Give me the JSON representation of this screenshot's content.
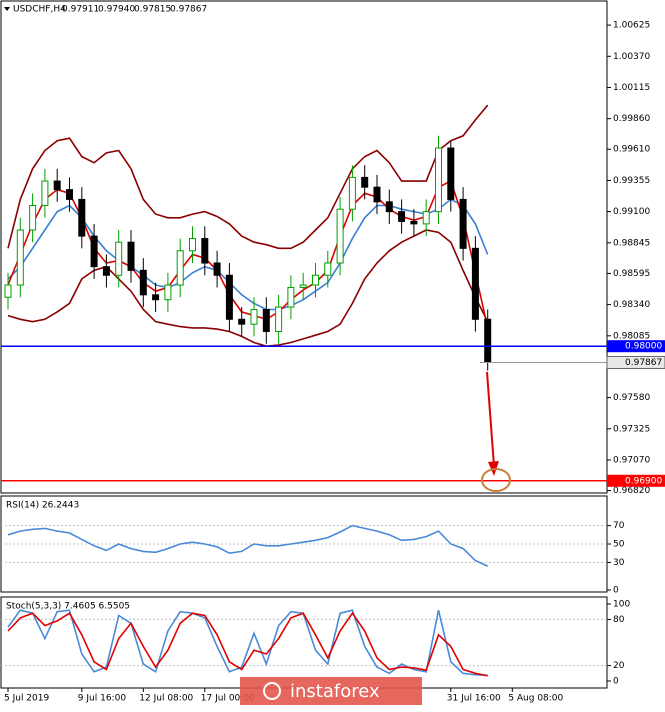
{
  "header": {
    "symbol": "USDCHF,H4",
    "ohlc": [
      "0.97911",
      "0.97940",
      "0.97815",
      "0.97867"
    ]
  },
  "watermark": "instaforex",
  "chart_data": [
    {
      "type": "candlestick",
      "ylim": [
        0.968,
        1.0083
      ],
      "yticks": [
        1.00625,
        {
          "value": 1.0037,
          "label": "1.00370"
        },
        1.00115,
        {
          "value": 0.9986,
          "label": "0.99860"
        },
        {
          "value": 0.9961,
          "label": "0.99610"
        },
        0.99355,
        {
          "value": 0.991,
          "label": "0.99100"
        },
        0.98845,
        0.98595,
        {
          "value": 0.9834,
          "label": "0.98340"
        },
        0.98085,
        {
          "value": 0.9758,
          "label": "0.97580"
        },
        0.97325,
        {
          "value": 0.9707,
          "label": "0.97070"
        },
        {
          "value": 0.9682,
          "label": "0.96820"
        }
      ],
      "xticks": [
        {
          "value": 0,
          "label": "5 Jul 2019"
        },
        {
          "value": 6,
          "label": "9 Jul 16:00"
        },
        {
          "value": 11,
          "label": "12 Jul 08:00"
        },
        {
          "value": 16,
          "label": "17 Jul 00:00"
        },
        {
          "value": 36,
          "label": "31 Jul 16:00"
        },
        {
          "value": 41,
          "label": "5 Aug 08:00"
        }
      ],
      "up_color": "#00a000",
      "down_color": "#000000",
      "open": [
        0.984,
        0.985,
        0.9895,
        0.9915,
        0.9935,
        0.9928,
        0.992,
        0.989,
        0.9865,
        0.9858,
        0.9885,
        0.9862,
        0.9842,
        0.9838,
        0.985,
        0.9878,
        0.9888,
        0.9868,
        0.9858,
        0.9822,
        0.9818,
        0.983,
        0.9812,
        0.9832,
        0.9848,
        0.985,
        0.9858,
        0.9868,
        0.9912,
        0.9938,
        0.993,
        0.9918,
        0.991,
        0.9902,
        0.99,
        0.991,
        0.9962,
        0.992,
        0.988,
        0.9822
      ],
      "high": [
        0.986,
        0.9905,
        0.9925,
        0.9945,
        0.9945,
        0.9938,
        0.993,
        0.99,
        0.9875,
        0.9895,
        0.9895,
        0.9872,
        0.9852,
        0.986,
        0.9888,
        0.9898,
        0.9898,
        0.9878,
        0.9868,
        0.9832,
        0.984,
        0.984,
        0.9842,
        0.9858,
        0.986,
        0.9868,
        0.9878,
        0.9922,
        0.9948,
        0.9948,
        0.994,
        0.9928,
        0.992,
        0.9912,
        0.992,
        0.9972,
        0.9968,
        0.993,
        0.989,
        0.983
      ],
      "low": [
        0.983,
        0.984,
        0.9885,
        0.9905,
        0.9918,
        0.991,
        0.988,
        0.9855,
        0.9848,
        0.9848,
        0.9852,
        0.9832,
        0.9828,
        0.9828,
        0.984,
        0.9868,
        0.9858,
        0.9848,
        0.9812,
        0.9808,
        0.9808,
        0.9802,
        0.9802,
        0.9822,
        0.9838,
        0.984,
        0.9848,
        0.9858,
        0.9902,
        0.992,
        0.9908,
        0.99,
        0.9892,
        0.989,
        0.989,
        0.99,
        0.991,
        0.987,
        0.9812,
        0.978
      ],
      "close": [
        0.985,
        0.9895,
        0.9915,
        0.9935,
        0.9928,
        0.992,
        0.989,
        0.9865,
        0.9858,
        0.9885,
        0.9862,
        0.9842,
        0.9838,
        0.985,
        0.9878,
        0.9888,
        0.9868,
        0.9858,
        0.9822,
        0.9818,
        0.983,
        0.9812,
        0.9832,
        0.9848,
        0.985,
        0.9858,
        0.9868,
        0.9912,
        0.9938,
        0.993,
        0.9918,
        0.991,
        0.9902,
        0.99,
        0.991,
        0.9962,
        0.992,
        0.988,
        0.9822,
        0.97867
      ],
      "series": [
        {
          "color": "#8b0000",
          "values": [
            0.988,
            0.992,
            0.9945,
            0.996,
            0.9968,
            0.997,
            0.9955,
            0.995,
            0.9958,
            0.996,
            0.9945,
            0.992,
            0.9908,
            0.9905,
            0.9905,
            0.9908,
            0.991,
            0.9906,
            0.99,
            0.989,
            0.9885,
            0.9883,
            0.988,
            0.988,
            0.9885,
            0.9895,
            0.9905,
            0.9925,
            0.9945,
            0.9955,
            0.996,
            0.995,
            0.9935,
            0.9935,
            0.9935,
            0.996,
            0.9968,
            0.9972,
            0.9985,
            0.9997
          ]
        },
        {
          "color": "#8b0000",
          "values": [
            0.9825,
            0.9822,
            0.982,
            0.9822,
            0.9828,
            0.9835,
            0.9855,
            0.9862,
            0.9865,
            0.9855,
            0.9845,
            0.983,
            0.982,
            0.9818,
            0.9816,
            0.9815,
            0.9815,
            0.9814,
            0.9812,
            0.9808,
            0.9803,
            0.98,
            0.9801,
            0.9803,
            0.9806,
            0.9809,
            0.9812,
            0.9818,
            0.9835,
            0.9855,
            0.9868,
            0.9878,
            0.9885,
            0.989,
            0.9895,
            0.9893,
            0.9885,
            0.9862,
            0.984,
            0.982
          ]
        },
        {
          "color": "#3a7fd0",
          "values": [
            0.9855,
            0.9865,
            0.988,
            0.9895,
            0.991,
            0.9915,
            0.9905,
            0.989,
            0.9878,
            0.987,
            0.9865,
            0.9858,
            0.985,
            0.9848,
            0.9852,
            0.986,
            0.9865,
            0.9862,
            0.9852,
            0.9842,
            0.9835,
            0.983,
            0.983,
            0.9833,
            0.9838,
            0.9845,
            0.9852,
            0.9868,
            0.9888,
            0.9905,
            0.9915,
            0.9915,
            0.9912,
            0.991,
            0.9908,
            0.9912,
            0.992,
            0.9915,
            0.99,
            0.9875
          ]
        },
        {
          "color": "#e00000",
          "values": [
            0.985,
            0.9875,
            0.99,
            0.992,
            0.9928,
            0.9925,
            0.9905,
            0.988,
            0.9868,
            0.987,
            0.9865,
            0.9852,
            0.9845,
            0.9848,
            0.9862,
            0.9875,
            0.9872,
            0.9862,
            0.9842,
            0.9828,
            0.9825,
            0.9822,
            0.9828,
            0.9838,
            0.9846,
            0.9852,
            0.9862,
            0.989,
            0.9915,
            0.9925,
            0.9922,
            0.9912,
            0.9906,
            0.9903,
            0.9906,
            0.993,
            0.9935,
            0.9905,
            0.986,
            0.9815
          ]
        }
      ],
      "levels": [
        {
          "value": 0.98,
          "label": "0.98000",
          "color": "#0000ff"
        },
        {
          "value": 0.969,
          "label": "0.96900",
          "color": "#ff0000"
        }
      ],
      "price_label": {
        "value": 0.97867,
        "label": "0.97867"
      }
    },
    {
      "type": "line",
      "title": "RSI(14) 26.2443",
      "ylim": [
        0,
        100
      ],
      "yticks": [
        70,
        50,
        30,
        0
      ],
      "grid_ticks": [
        70,
        50,
        30
      ],
      "series": [
        {
          "color": "#4a8ad8",
          "values": [
            60,
            64,
            66,
            67,
            64,
            62,
            55,
            48,
            43,
            50,
            45,
            42,
            41,
            45,
            50,
            52,
            50,
            47,
            40,
            42,
            50,
            48,
            48,
            50,
            52,
            54,
            57,
            63,
            70,
            67,
            64,
            60,
            54,
            55,
            58,
            64,
            50,
            45,
            32,
            26
          ]
        }
      ]
    },
    {
      "type": "line",
      "title": "Stoch(5,3,3) 7.4605 6.5505",
      "ylim": [
        0,
        100
      ],
      "yticks": [
        100,
        80,
        20,
        0
      ],
      "grid_ticks": [
        80,
        20
      ],
      "series": [
        {
          "color": "#4a8ad8",
          "values": [
            70,
            92,
            88,
            55,
            90,
            92,
            35,
            12,
            18,
            85,
            75,
            22,
            12,
            65,
            90,
            88,
            82,
            45,
            12,
            18,
            62,
            22,
            72,
            90,
            88,
            40,
            22,
            88,
            92,
            45,
            18,
            10,
            22,
            15,
            12,
            92,
            25,
            10,
            8,
            7.5
          ]
        },
        {
          "color": "#e00000",
          "values": [
            65,
            82,
            88,
            72,
            78,
            88,
            60,
            25,
            15,
            55,
            75,
            45,
            18,
            40,
            75,
            88,
            85,
            60,
            25,
            15,
            40,
            35,
            55,
            82,
            88,
            60,
            30,
            65,
            88,
            65,
            30,
            15,
            18,
            17,
            14,
            60,
            45,
            15,
            10,
            6.6
          ]
        }
      ]
    }
  ]
}
